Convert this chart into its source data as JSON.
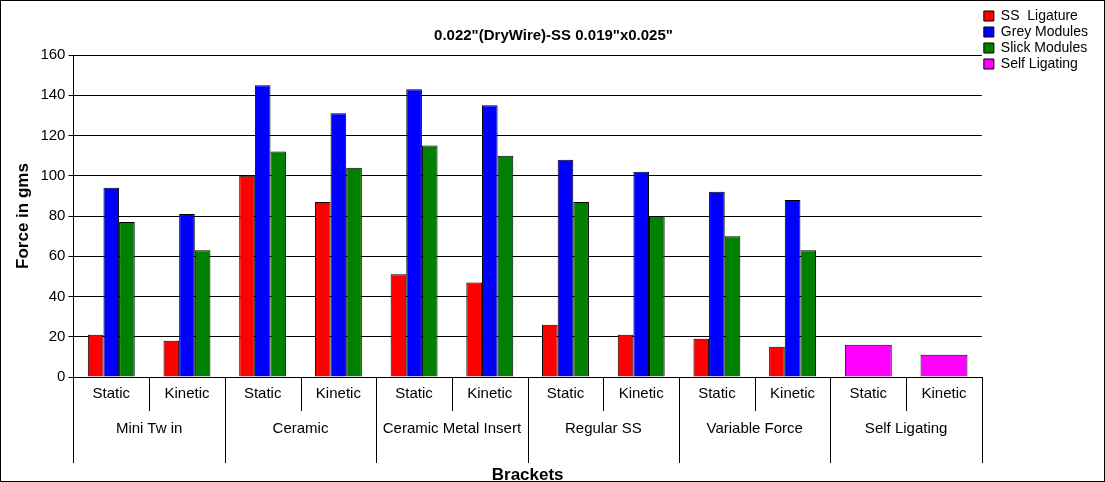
{
  "chart_data": {
    "type": "bar",
    "title": "0.022\"(DryWire)-SS 0.019\"x0.025\"",
    "xlabel": "Brackets",
    "ylabel": "Force in gms",
    "categories": [
      "Static",
      "Kinetic",
      "Static",
      "Kinetic",
      "Static",
      "Kinetic",
      "Static",
      "Kinetic",
      "Static",
      "Kinetic",
      "Static",
      "Kinetic"
    ],
    "annotations": [
      "Mini Tw in",
      "Ceramic",
      "Ceramic Metal Insert",
      "Regular SS",
      "Variable Force",
      "Self Ligating"
    ],
    "series": [
      {
        "name": "SS  Ligature",
        "color": "#ff0000",
        "values": [
          21,
          18,
          100,
          87,
          51,
          47,
          26,
          21,
          19,
          15,
          null,
          null
        ]
      },
      {
        "name": "Grey Modules",
        "color": "#0000ff",
        "values": [
          94,
          81,
          145,
          131,
          143,
          135,
          108,
          102,
          92,
          88,
          null,
          null
        ]
      },
      {
        "name": "Slick Modules",
        "color": "#008000",
        "values": [
          77,
          63,
          112,
          104,
          115,
          110,
          87,
          80,
          70,
          63,
          null,
          null
        ]
      },
      {
        "name": "Self Ligating",
        "color": "#ff00ff",
        "values": [
          null,
          null,
          null,
          null,
          null,
          null,
          null,
          null,
          null,
          null,
          16,
          11
        ]
      }
    ],
    "ylim": [
      0,
      160
    ],
    "yticks": [
      0,
      20,
      40,
      60,
      80,
      100,
      120,
      140,
      160
    ],
    "grid": "y",
    "legend": "top right"
  }
}
